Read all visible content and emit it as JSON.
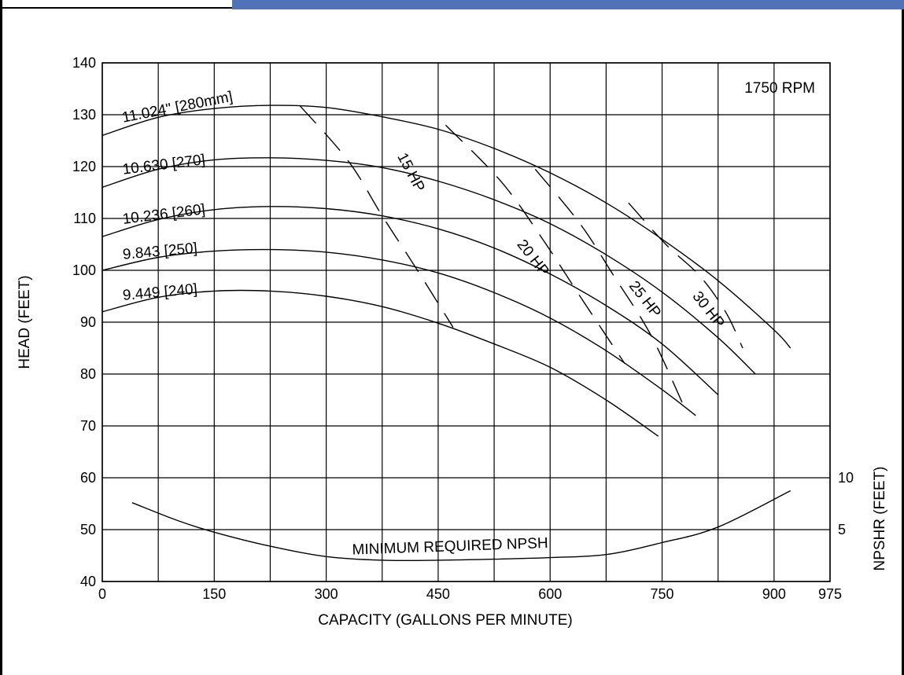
{
  "chart_data": {
    "type": "line",
    "xlabel": "CAPACITY (GALLONS PER MINUTE)",
    "ylabel": "HEAD (FEET)",
    "y2label": "NPSHR (FEET)",
    "annotation": "1750 RPM",
    "xlim": [
      0,
      975
    ],
    "ylim": [
      40,
      140
    ],
    "x_ticks": [
      "0",
      "150",
      "300",
      "450",
      "600",
      "750",
      "900",
      "975"
    ],
    "x_tick_values": [
      0,
      150,
      300,
      450,
      600,
      750,
      900,
      975
    ],
    "y_ticks": [
      "40",
      "50",
      "60",
      "70",
      "80",
      "90",
      "100",
      "110",
      "120",
      "130",
      "140"
    ],
    "y_tick_values": [
      40,
      50,
      60,
      70,
      80,
      90,
      100,
      110,
      120,
      130,
      140
    ],
    "y2_ticks": [
      {
        "label": "10",
        "head_equiv": 60
      },
      {
        "label": "5",
        "head_equiv": 50
      }
    ],
    "grid": true,
    "series": [
      {
        "name": "11.024\" [280mm]",
        "kind": "impeller",
        "x": [
          0,
          75,
          150,
          225,
          300,
          375,
          450,
          525,
          600,
          675,
          750,
          825,
          900,
          922
        ],
        "y": [
          126,
          129.5,
          131.2,
          131.8,
          131.4,
          129.6,
          127.2,
          123.5,
          118.8,
          113,
          106,
          98,
          88.5,
          85
        ]
      },
      {
        "name": "10.630 [270]",
        "kind": "impeller",
        "x": [
          0,
          75,
          150,
          225,
          300,
          375,
          450,
          525,
          600,
          675,
          750,
          825,
          875
        ],
        "y": [
          116,
          119.5,
          121.3,
          121.7,
          121.2,
          119.8,
          117.2,
          113.6,
          109,
          103,
          95.8,
          87,
          80
        ]
      },
      {
        "name": "10.236 [260]",
        "kind": "impeller",
        "x": [
          0,
          75,
          150,
          225,
          300,
          375,
          450,
          525,
          600,
          675,
          750,
          825
        ],
        "y": [
          106.5,
          109.8,
          111.7,
          112.3,
          111.9,
          110.5,
          108,
          104.3,
          99.3,
          93.2,
          85.8,
          76
        ]
      },
      {
        "name": "9.843 [250]",
        "kind": "impeller",
        "x": [
          0,
          75,
          150,
          225,
          300,
          375,
          450,
          525,
          600,
          675,
          750,
          795
        ],
        "y": [
          100,
          102.5,
          103.7,
          104,
          103.5,
          102,
          99.5,
          95.7,
          90.8,
          84.5,
          77,
          72
        ]
      },
      {
        "name": "9.449 [240]",
        "kind": "impeller",
        "x": [
          0,
          75,
          150,
          225,
          300,
          375,
          450,
          525,
          600,
          675,
          745
        ],
        "y": [
          92,
          94.8,
          96,
          96,
          95,
          93,
          89.8,
          85.8,
          81.3,
          75,
          68
        ]
      },
      {
        "name": "15 HP",
        "kind": "power",
        "x": [
          265,
          330,
          375,
          420,
          470
        ],
        "y": [
          131.7,
          121,
          110.5,
          100.5,
          89
        ]
      },
      {
        "name": "20 HP",
        "kind": "power",
        "x": [
          460,
          535,
          590,
          640,
          700
        ],
        "y": [
          128,
          117,
          106,
          95,
          82
        ]
      },
      {
        "name": "25 HP",
        "kind": "power",
        "x": [
          580,
          640,
          685,
          735,
          780
        ],
        "y": [
          119.5,
          109,
          99,
          87.5,
          73.5
        ]
      },
      {
        "name": "30 HP",
        "kind": "power",
        "x": [
          705,
          755,
          800,
          835,
          858
        ],
        "y": [
          113,
          105,
          99,
          92,
          85
        ]
      },
      {
        "name": "MINIMUM REQUIRED NPSH",
        "kind": "npsh",
        "x": [
          40,
          100,
          150,
          225,
          300,
          375,
          450,
          525,
          600,
          675,
          750,
          825,
          922
        ],
        "y": [
          55.2,
          51.8,
          49.5,
          46.8,
          44.8,
          44.1,
          44.1,
          44.3,
          44.6,
          45.2,
          47.5,
          50.5,
          57.5
        ]
      }
    ]
  }
}
